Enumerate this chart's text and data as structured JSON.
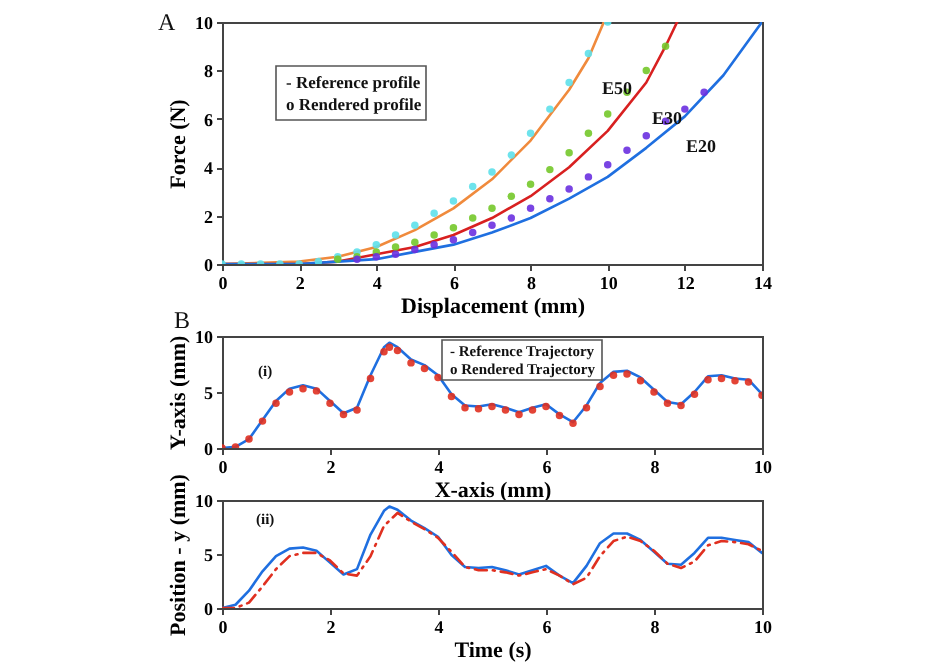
{
  "chart_data": [
    {
      "type": "line",
      "xlabel": "Displacement (mm)",
      "ylabel": "Force (N)",
      "xlim": [
        0,
        14
      ],
      "xticks": [
        0,
        2,
        4,
        6,
        8,
        10,
        12,
        14
      ],
      "ylim": [
        0,
        10
      ],
      "yticks": [
        0,
        2,
        4,
        6,
        8,
        10
      ],
      "grid": false,
      "annotations": [
        "A",
        "- Reference profile",
        "o Rendered profile",
        "E50",
        "E30",
        "E20"
      ],
      "series": [
        {
          "type": "scatter",
          "marker": "circle",
          "color": "#5ee0ea",
          "x": [
            0,
            0.5,
            1,
            1.5,
            2,
            2.5,
            3,
            3.5,
            4,
            4.5,
            5,
            5.5,
            6,
            6.5,
            7,
            7.5,
            8,
            8.5,
            9,
            9.5,
            10
          ],
          "values": [
            0,
            0,
            0,
            0,
            0,
            0.1,
            0.3,
            0.5,
            0.8,
            1.2,
            1.6,
            2.1,
            2.6,
            3.2,
            3.8,
            4.5,
            5.4,
            6.4,
            7.5,
            8.7,
            10
          ]
        },
        {
          "type": "scatter",
          "marker": "circle",
          "color": "#74c82a",
          "x": [
            3,
            3.5,
            4,
            4.5,
            5,
            5.5,
            6,
            6.5,
            7,
            7.5,
            8,
            8.5,
            9,
            9.5,
            10,
            10.5,
            11,
            11.5
          ],
          "values": [
            0.2,
            0.3,
            0.5,
            0.7,
            0.9,
            1.2,
            1.5,
            1.9,
            2.3,
            2.8,
            3.3,
            3.9,
            4.6,
            5.4,
            6.2,
            7.1,
            8.0,
            9.0
          ]
        },
        {
          "type": "scatter",
          "marker": "circle",
          "color": "#6a30e0",
          "x": [
            3.5,
            4,
            4.5,
            5,
            5.5,
            6,
            6.5,
            7,
            7.5,
            8,
            8.5,
            9,
            9.5,
            10,
            10.5,
            11,
            11.5,
            12,
            12.5
          ],
          "values": [
            0.2,
            0.3,
            0.4,
            0.6,
            0.8,
            1.0,
            1.3,
            1.6,
            1.9,
            2.3,
            2.7,
            3.1,
            3.6,
            4.1,
            4.7,
            5.3,
            5.9,
            6.4,
            7.1
          ]
        },
        {
          "type": "line",
          "color": "#f08a3c",
          "x": [
            0,
            2,
            3,
            4,
            5,
            6,
            7,
            8,
            9,
            9.5,
            9.9
          ],
          "values": [
            0,
            0.1,
            0.3,
            0.7,
            1.4,
            2.3,
            3.5,
            5.1,
            7.2,
            8.5,
            10
          ]
        },
        {
          "type": "line",
          "color": "#d82020",
          "x": [
            0,
            2,
            3,
            4,
            5,
            6,
            7,
            8,
            9,
            10,
            11,
            11.5,
            11.8
          ],
          "values": [
            0,
            0,
            0.1,
            0.4,
            0.7,
            1.2,
            1.9,
            2.8,
            4.0,
            5.5,
            7.5,
            9.0,
            10
          ]
        },
        {
          "type": "line",
          "color": "#1f6fe0",
          "x": [
            0,
            1,
            2,
            3,
            4,
            5,
            6,
            7,
            8,
            9,
            10,
            11,
            12,
            13,
            14
          ],
          "values": [
            0,
            0,
            0,
            0.1,
            0.2,
            0.5,
            0.8,
            1.3,
            1.9,
            2.7,
            3.6,
            4.8,
            6.1,
            7.8,
            10
          ]
        }
      ]
    },
    {
      "type": "line",
      "xlabel": "X-axis (mm)",
      "ylabel": "Y-axis (mm)",
      "xlim": [
        0,
        10
      ],
      "xticks": [
        0,
        2,
        4,
        6,
        8,
        10
      ],
      "ylim": [
        0,
        10
      ],
      "yticks": [
        0,
        5,
        10
      ],
      "grid": false,
      "annotations": [
        "B",
        "- Reference Trajectory",
        "o Rendered Trajectory",
        "(i)"
      ],
      "series": [
        {
          "type": "line",
          "color": "#1f6fe0",
          "x": [
            0,
            0.25,
            0.5,
            0.75,
            1,
            1.25,
            1.5,
            1.75,
            2,
            2.25,
            2.5,
            2.75,
            3,
            3.1,
            3.25,
            3.5,
            3.75,
            4,
            4.25,
            4.5,
            4.75,
            5,
            5.25,
            5.5,
            5.75,
            6,
            6.25,
            6.5,
            6.75,
            7,
            7.25,
            7.5,
            7.75,
            8,
            8.25,
            8.5,
            8.75,
            9,
            9.25,
            9.5,
            9.75,
            10
          ],
          "values": [
            0,
            0.1,
            0.8,
            2.5,
            4.2,
            5.3,
            5.6,
            5.3,
            4.2,
            3.1,
            3.6,
            6.5,
            9.0,
            9.4,
            9.0,
            7.9,
            7.4,
            6.5,
            4.8,
            3.8,
            3.7,
            3.9,
            3.6,
            3.2,
            3.6,
            3.9,
            3.0,
            2.3,
            3.8,
            5.8,
            6.8,
            6.9,
            6.3,
            5.2,
            4.1,
            3.9,
            5.0,
            6.4,
            6.5,
            6.2,
            6.1,
            4.8
          ]
        },
        {
          "type": "scatter",
          "marker": "circle",
          "color": "#e03020",
          "x": [
            0,
            0.25,
            0.5,
            0.75,
            1,
            1.25,
            1.5,
            1.75,
            2,
            2.25,
            2.5,
            2.75,
            3,
            3.1,
            3.25,
            3.5,
            3.75,
            4,
            4.25,
            4.5,
            4.75,
            5,
            5.25,
            5.5,
            5.75,
            6,
            6.25,
            6.5,
            6.75,
            7,
            7.25,
            7.5,
            7.75,
            8,
            8.25,
            8.5,
            8.75,
            9,
            9.25,
            9.5,
            9.75,
            10
          ],
          "values": [
            0,
            0.1,
            0.8,
            2.4,
            4.0,
            5.0,
            5.3,
            5.1,
            4.0,
            3.0,
            3.4,
            6.2,
            8.6,
            9.0,
            8.7,
            7.6,
            7.1,
            6.3,
            4.6,
            3.6,
            3.5,
            3.7,
            3.4,
            3.0,
            3.4,
            3.7,
            2.9,
            2.2,
            3.6,
            5.5,
            6.5,
            6.6,
            6.0,
            5.0,
            4.0,
            3.8,
            4.8,
            6.1,
            6.2,
            6.0,
            5.9,
            4.7
          ]
        }
      ]
    },
    {
      "type": "line",
      "xlabel": "Time (s)",
      "ylabel": "Position - y (mm)",
      "xlim": [
        0,
        10
      ],
      "xticks": [
        0,
        2,
        4,
        6,
        8,
        10
      ],
      "ylim": [
        0,
        10
      ],
      "yticks": [
        0,
        5,
        10
      ],
      "grid": false,
      "annotations": [
        "(ii)"
      ],
      "series": [
        {
          "type": "line",
          "color": "#1f6fe0",
          "x": [
            0,
            0.25,
            0.5,
            0.75,
            1,
            1.25,
            1.5,
            1.75,
            2,
            2.25,
            2.5,
            2.75,
            3,
            3.1,
            3.25,
            3.5,
            3.75,
            4,
            4.25,
            4.5,
            4.75,
            5,
            5.25,
            5.5,
            5.75,
            6,
            6.25,
            6.5,
            6.75,
            7,
            7.25,
            7.5,
            7.75,
            8,
            8.25,
            8.5,
            8.75,
            9,
            9.25,
            9.5,
            9.75,
            10
          ],
          "values": [
            0,
            0.3,
            1.6,
            3.4,
            4.8,
            5.5,
            5.6,
            5.3,
            4.2,
            3.1,
            3.6,
            6.8,
            9.0,
            9.4,
            9.1,
            8.1,
            7.4,
            6.6,
            4.9,
            3.8,
            3.7,
            3.8,
            3.5,
            3.1,
            3.5,
            3.9,
            3.0,
            2.3,
            3.9,
            6.0,
            6.9,
            6.9,
            6.3,
            5.2,
            4.1,
            4.0,
            5.1,
            6.5,
            6.5,
            6.3,
            6.1,
            5.1
          ]
        },
        {
          "type": "line",
          "line_style": "dashed",
          "color": "#e03020",
          "x": [
            0,
            0.25,
            0.5,
            0.75,
            1,
            1.25,
            1.5,
            1.75,
            2,
            2.25,
            2.5,
            2.75,
            3,
            3.25,
            3.5,
            3.75,
            4,
            4.25,
            4.5,
            4.75,
            5,
            5.25,
            5.5,
            5.75,
            6,
            6.25,
            6.5,
            6.75,
            7,
            7.25,
            7.5,
            7.75,
            8,
            8.25,
            8.5,
            8.75,
            9,
            9.25,
            9.5,
            9.75,
            10
          ],
          "values": [
            0,
            0,
            0.5,
            2.0,
            3.6,
            4.8,
            5.1,
            5.1,
            4.4,
            3.2,
            3.0,
            4.8,
            7.6,
            8.8,
            8.0,
            7.3,
            6.5,
            5.2,
            3.8,
            3.5,
            3.5,
            3.3,
            3.0,
            3.3,
            3.6,
            3.0,
            2.2,
            2.8,
            4.8,
            6.2,
            6.6,
            6.2,
            5.3,
            4.1,
            3.7,
            4.3,
            5.8,
            6.2,
            6.1,
            5.9,
            5.3
          ]
        }
      ]
    }
  ]
}
